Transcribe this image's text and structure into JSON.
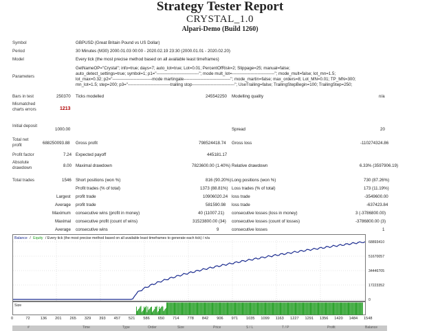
{
  "header": {
    "title": "Strategy Tester Report",
    "subtitle": "CRYSTAL_1.0",
    "account": "Alpari-Demo (Build 1260)"
  },
  "info": {
    "symbol_label": "Symbol",
    "symbol_value": "GBPUSD (Great Britain Pound vs US Dollar)",
    "period_label": "Period",
    "period_value": "30 Minutes (M30) 2000.01.03 00:00 - 2020.02.19 23:30 (2000.01.01 - 2020.02.20)",
    "model_label": "Model",
    "model_value": "Every tick (the most precise method based on all available least timeframes)",
    "parameters_label": "Parameters",
    "parameters_lines": [
      "GetNameOP=\"Crystal\"; info=true; days=7; auto_lot=true; Lot=0.01; PercentOfRisk=2; Slippage=25; manual=false;",
      "auto_detect_settings=true; symbol=1; p1=\"------------------------------\"; mode mult_lot=------------------------------\"; mode_mult=false; lot_mn=1.5;",
      "lot_max=0.32; p2=\"----------------------------mode martingale---------------------------------\"; mode_martin=false; max_orders=8; Lot_MN=0.01; TP_MN=300;",
      "mn_lot=1.5; step=200; p3=\"------------------------------trailing stop------------------------------\"; UseTrailing=false; TrailingStepBegin=100; TrailingStep=250;"
    ]
  },
  "stats": {
    "bars_label": "Bars in test",
    "bars_value": "250370",
    "ticks_label": "Ticks modelled",
    "ticks_value": "245542250",
    "quality_label": "Modelling quality",
    "quality_value": "n/a",
    "mismatch_label": "Mismatched charts errors",
    "mismatch_value": "1213",
    "deposit_label": "Initial deposit",
    "deposit_value": "1000.00",
    "spread_label": "Spread",
    "spread_value": "20",
    "net_label": "Total net profit",
    "net_value": "688250093.88",
    "gross_profit_label": "Gross profit",
    "gross_profit_value": "798524418.74",
    "gross_loss_label": "Gross loss",
    "gross_loss_value": "-110274324.86",
    "pf_label": "Profit factor",
    "pf_value": "7.24",
    "payoff_label": "Expected payoff",
    "payoff_value": "445181.17",
    "absdd_label": "Absolute drawdown",
    "absdd_value": "8.00",
    "maxdd_label": "Maximal drawdown",
    "maxdd_value": "7823600.00 (1.40%)",
    "reldd_label": "Relative drawdown",
    "reldd_value": "6.33% (3597906.19)",
    "trades_label": "Total trades",
    "trades_value": "1546",
    "short_label": "Short positions (won %)",
    "short_value": "816 (90.20%)",
    "long_label": "Long positions (won %)",
    "long_value": "730 (87.26%)",
    "pt_label": "Profit trades (% of total)",
    "pt_value": "1373 (88.81%)",
    "lt_label": "Loss trades (% of total)",
    "lt_value": "173 (11.19%)",
    "largest_label": "Largest",
    "lpt_label": "profit trade",
    "lpt_value": "10906020.24",
    "llt_label": "loss trade",
    "llt_value": "-3549600.00",
    "average_label": "Average",
    "apt_label": "profit trade",
    "apt_value": "581590.98",
    "alt_label": "loss trade",
    "alt_value": "-637423.84",
    "maximum_label": "Maximum",
    "mcw_label": "consecutive wins (profit in money)",
    "mcw_value": "40 (11007.21)",
    "mcl_label": "consecutive losses (loss in money)",
    "mcl_value": "3 (-3786800.00)",
    "maximal_label": "Maximal",
    "mcp_label": "consecutive profit (count of wins)",
    "mcp_value": "31523800.00 (34)",
    "mclc_label": "consecutive losses (count of losses)",
    "mclc_value": "-3786800.00 (3)",
    "average2_label": "Average",
    "acw_label": "consecutive wins",
    "acw_value": "9",
    "acl_label": "consecutive losses",
    "acl_value": "1"
  },
  "graph": {
    "legend_balance": "Balance",
    "legend_sep": "/",
    "legend_equity": "Equity",
    "legend_rest": "/ Every tick (the most precise method based on all available least timeframes to generate each tick) / n/a",
    "y_ticks": [
      "68893410",
      "51670057",
      "34446705",
      "17223352",
      "0"
    ],
    "size_label": "Size",
    "x_ticks": [
      "0",
      "72",
      "136",
      "201",
      "265",
      "329",
      "393",
      "457",
      "521",
      "586",
      "650",
      "714",
      "778",
      "842",
      "906",
      "971",
      "1035",
      "1099",
      "1163",
      "1227",
      "1291",
      "1356",
      "1420",
      "1484",
      "1548"
    ],
    "colors": {
      "balance": "#1a2b8f",
      "grid": "#c8c8c8",
      "volume": "#1a9a1a"
    }
  },
  "footer_cols": [
    "#",
    "Time",
    "Type",
    "Order",
    "Size",
    "Price",
    "S / L",
    "T / P",
    "Profit",
    "Balance"
  ]
}
